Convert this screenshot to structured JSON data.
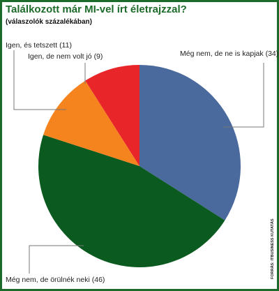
{
  "chart_data": {
    "type": "pie",
    "title": "Találkozott már MI-vel írt életrajzzal?",
    "subtitle": "(válaszolók százalékában)",
    "source": "FORRÁS: ITBUSINESS KUTATÁS",
    "categories": [
      "Még nem, de ne is kapjak",
      "Még nem, de örülnék neki",
      "Igen, és tetszett",
      "Igen, de nem volt jó"
    ],
    "values": [
      34,
      46,
      11,
      9
    ],
    "value_labels": [
      "(34)",
      "(46)",
      "(11)",
      "(9)"
    ],
    "colors": [
      "#4a6a9d",
      "#0b5a1f",
      "#f5841f",
      "#e8262a"
    ]
  }
}
